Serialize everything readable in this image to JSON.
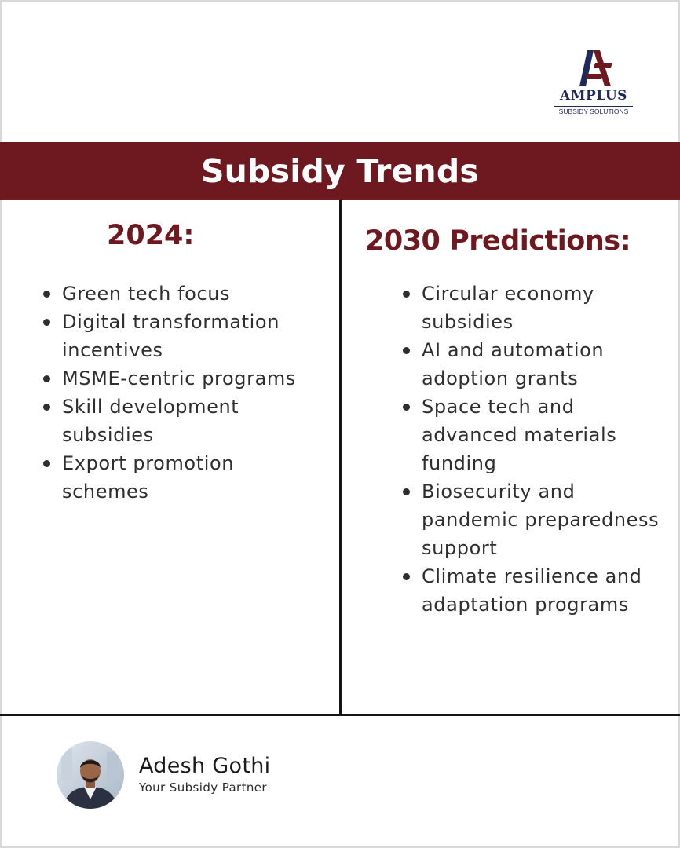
{
  "brand": {
    "name": "AMPLUS",
    "tagline": "SUBSIDY SOLUTIONS",
    "primary_color": "#6e1820",
    "navy_color": "#1f2a5c"
  },
  "banner": {
    "title": "Subsidy Trends"
  },
  "left_column": {
    "heading": "2024:",
    "items": [
      "Green tech focus",
      "Digital transformation incentives",
      "MSME-centric programs",
      "Skill development subsidies",
      "Export promotion schemes"
    ]
  },
  "right_column": {
    "heading": "2030 Predictions:",
    "items": [
      "Circular economy subsidies",
      "AI and automation adoption grants",
      "Space tech and advanced materials funding",
      "Biosecurity and pandemic preparedness support",
      "Climate resilience and adaptation programs"
    ]
  },
  "footer": {
    "name": "Adesh Gothi",
    "role": "Your Subsidy Partner",
    "avatar_icon": "person-photo"
  }
}
